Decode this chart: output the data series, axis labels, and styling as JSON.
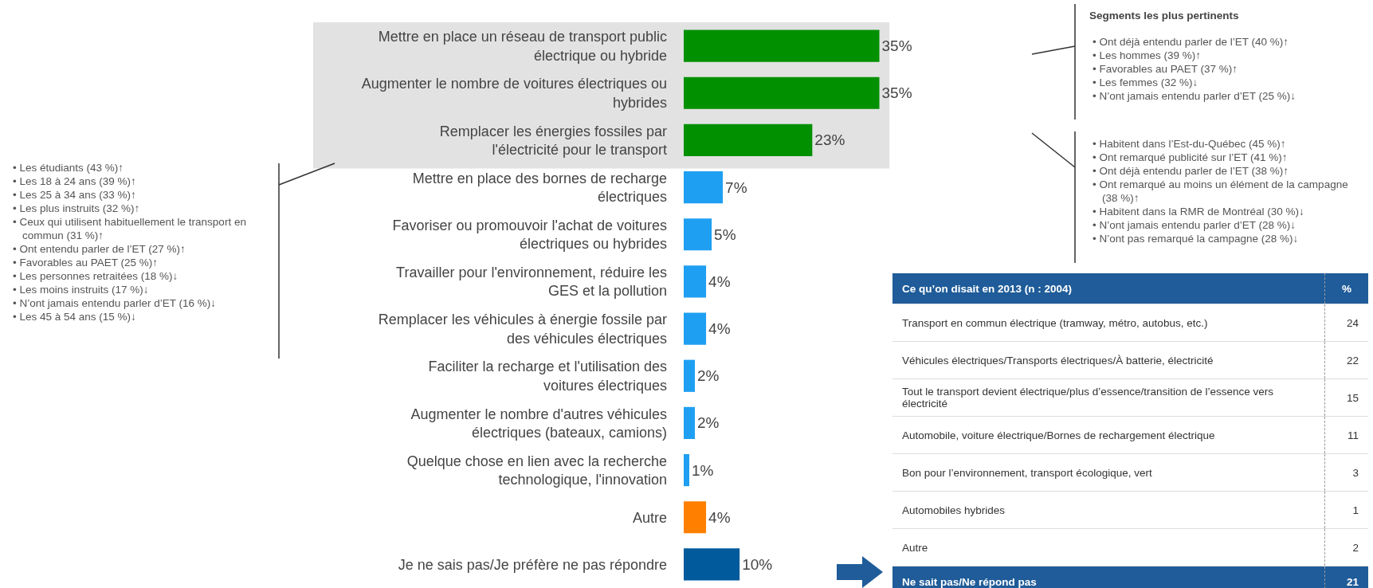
{
  "chart_data": [
    {
      "type": "bar",
      "orientation": "horizontal",
      "categories": [
        "Mettre en place un réseau de transport public électrique ou hybride",
        "Augmenter le nombre de voitures électriques ou hybrides",
        "Remplacer les énergies fossiles par l'électricité pour le transport",
        "Mettre en place des bornes de recharge électriques",
        "Favoriser ou promouvoir l'achat de voitures électriques ou hybrides",
        "Travailler pour l'environnement, réduire les GES et la pollution",
        "Remplacer les véhicules à énergie fossile par des véhicules électriques",
        "Faciliter la recharge et l'utilisation des voitures électriques",
        "Augmenter le nombre d'autres véhicules électriques (bateaux, camions)",
        "Quelque chose en lien avec la recherche technologique, l'innovation",
        "Autre",
        "Je ne sais pas/Je préfère ne pas répondre"
      ],
      "values": [
        35,
        35,
        23,
        7,
        5,
        4,
        4,
        2,
        2,
        1,
        4,
        10
      ],
      "colors": [
        "#009000",
        "#009000",
        "#009000",
        "#1e9ff2",
        "#1e9ff2",
        "#1e9ff2",
        "#1e9ff2",
        "#1e9ff2",
        "#1e9ff2",
        "#1e9ff2",
        "#ff8000",
        "#005a9c"
      ],
      "bands": [
        {
          "axis": "y",
          "from": "Mettre en place un réseau de transport public électrique ou hybride",
          "to": "Remplacer les énergies fossiles par l'électricité pour le transport",
          "color": "#e2e2e2"
        }
      ],
      "value_labels": [
        "35%",
        "35%",
        "23%",
        "7%",
        "5%",
        "4%",
        "4%",
        "2%",
        "2%",
        "1%",
        "4%",
        "10%"
      ],
      "annotations": [
        "• Les étudiants (43 %)↑",
        "• Les 18 à 24 ans (39 %)↑",
        "• Les 25 à 34 ans (33 %)↑",
        "• Les plus instruits (32 %)↑",
        "• Ceux qui utilisent habituellement le transport en commun (31 %)↑",
        "• Ont entendu parler de l’ET (27 %)↑",
        "• Favorables au PAET (25 %)↑",
        "• Les personnes retraitées (18 %)↓",
        "• Les moins instruits (17 %)↓",
        "• N’ont jamais entendu parler d’ET (16 %)↓",
        "• Les 45 à 54 ans (15 %)↓",
        "Segments les plus pertinents",
        "• Ont déjà entendu parler de l’ET (40 %)↑",
        "• Les hommes (39 %)↑",
        "• Favorables au PAET (37 %)↑",
        "• Les femmes (32 %)↓",
        "• N’ont jamais entendu parler d’ET (25 %)↓",
        "• Habitent dans l’Est-du-Québec (45 %)↑",
        "• Ont remarqué publicité sur l’ET (41 %)↑",
        "• Ont déjà entendu parler de l’ET (38 %)↑",
        "• Ont remarqué au moins un élément de la campagne (38 %)↑",
        "• Habitent dans la RMR de Montréal (30 %)↓",
        "• N’ont jamais entendu parler d’ET (28 %)↓",
        "• N’ont pas remarqué la campagne (28 %)↓"
      ]
    },
    {
      "type": "other",
      "title": "Ce qu’on disait en 2013 (n : 2004)",
      "ylabel": "%",
      "categories": [
        "Transport en commun électrique (tramway, métro, autobus, etc.)",
        "Véhicules électriques/Transports électriques/À batterie, électricité",
        "Tout le transport devient électrique/plus d’essence/transition de l’essence vers électricité",
        "Automobile, voiture électrique/Bornes de rechargement électrique",
        "Bon pour l’environnement, transport écologique, vert",
        "Automobiles hybrides",
        "Autre",
        "Ne sait pas/Ne répond pas"
      ],
      "values": [
        24,
        22,
        15,
        11,
        3,
        1,
        2,
        21
      ],
      "data_labels": true
    }
  ]
}
